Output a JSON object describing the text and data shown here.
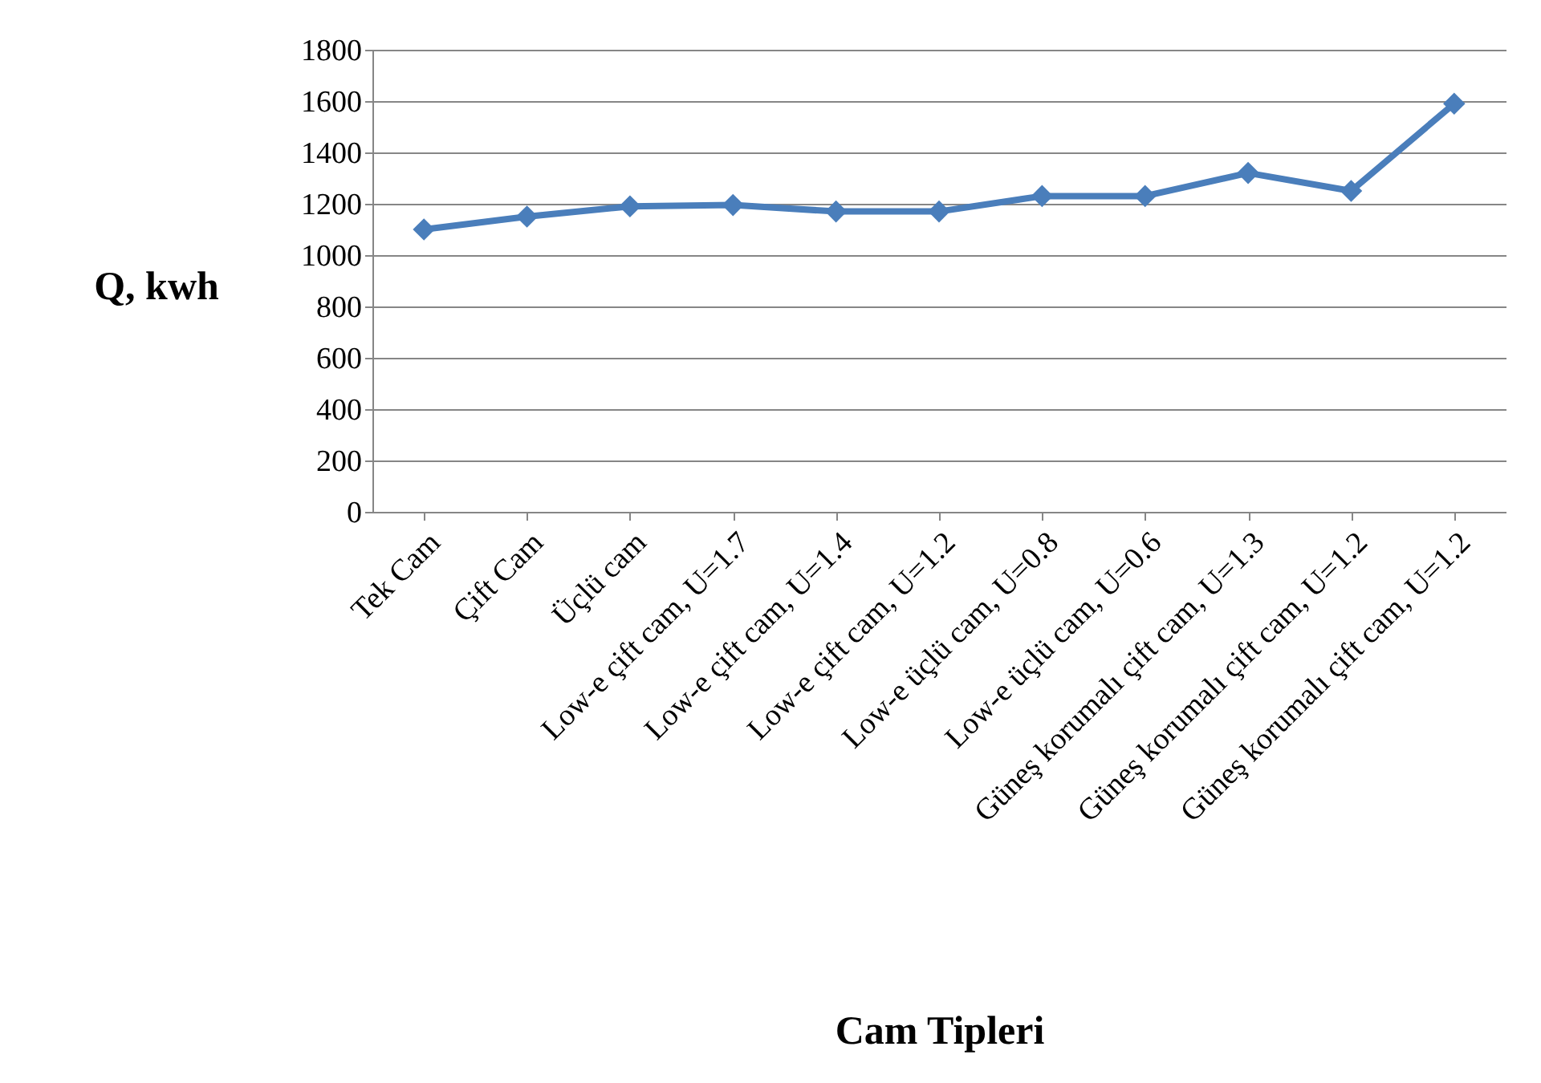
{
  "chart_data": {
    "type": "line",
    "xlabel": "Cam Tipleri",
    "ylabel": "Q, kwh",
    "categories": [
      "Tek Cam",
      "Çift Cam",
      "Üçlü cam",
      "Low-e çift cam, U=1.7",
      "Low-e çift cam, U=1.4",
      "Low-e çift cam, U=1.2",
      "Low-e üçlü cam, U=0.8",
      "Low-e üçlü cam, U=0.6",
      "Güneş korumalı çift cam, U=1.3",
      "Güneş korumalı çift cam, U=1.2",
      "Güneş korumalı çift cam, U=1.2"
    ],
    "series": [
      {
        "color": "#4a7ebb",
        "values": [
          1100,
          1150,
          1190,
          1195,
          1170,
          1170,
          1230,
          1230,
          1320,
          1250,
          1590
        ]
      }
    ],
    "ylim": [
      0,
      1800
    ],
    "yticks": [
      0,
      200,
      400,
      600,
      800,
      1000,
      1200,
      1400,
      1600,
      1800
    ],
    "grid": "y",
    "legend": false,
    "marker": "diamond",
    "line_style": "solid"
  }
}
